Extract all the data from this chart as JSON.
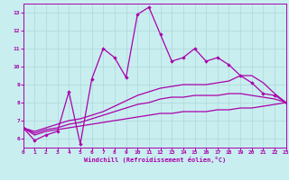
{
  "title": "Windchill (Refroidissement éolien,°C)",
  "bg_color": "#c8eef0",
  "grid_color": "#b0d8d8",
  "line_color": "#aa00aa",
  "xlim": [
    0,
    23
  ],
  "ylim": [
    5.5,
    13.5
  ],
  "xticks": [
    0,
    1,
    2,
    3,
    4,
    5,
    6,
    7,
    8,
    9,
    10,
    11,
    12,
    13,
    14,
    15,
    16,
    17,
    18,
    19,
    20,
    21,
    22,
    23
  ],
  "yticks": [
    6,
    7,
    8,
    9,
    10,
    11,
    12,
    13
  ],
  "series1_x": [
    0,
    1,
    2,
    3,
    4,
    5,
    6,
    7,
    8,
    9,
    10,
    11,
    12,
    13,
    14,
    15,
    16,
    17,
    18,
    19,
    20,
    21,
    22,
    23
  ],
  "series1_y": [
    6.6,
    5.9,
    6.2,
    6.4,
    8.6,
    5.7,
    9.3,
    11.0,
    10.5,
    9.4,
    12.9,
    13.3,
    11.8,
    10.3,
    10.5,
    11.0,
    10.3,
    10.5,
    10.1,
    9.5,
    9.1,
    8.5,
    8.4,
    8.0
  ],
  "series2_x": [
    0,
    1,
    2,
    3,
    4,
    5,
    6,
    7,
    8,
    9,
    10,
    11,
    12,
    13,
    14,
    15,
    16,
    17,
    18,
    19,
    20,
    21,
    22,
    23
  ],
  "series2_y": [
    6.6,
    6.4,
    6.6,
    6.8,
    7.0,
    7.1,
    7.3,
    7.5,
    7.8,
    8.1,
    8.4,
    8.6,
    8.8,
    8.9,
    9.0,
    9.0,
    9.0,
    9.1,
    9.2,
    9.5,
    9.5,
    9.1,
    8.5,
    8.0
  ],
  "series3_x": [
    0,
    1,
    2,
    3,
    4,
    5,
    6,
    7,
    8,
    9,
    10,
    11,
    12,
    13,
    14,
    15,
    16,
    17,
    18,
    19,
    20,
    21,
    22,
    23
  ],
  "series3_y": [
    6.6,
    6.3,
    6.5,
    6.6,
    6.8,
    6.9,
    7.1,
    7.3,
    7.5,
    7.7,
    7.9,
    8.0,
    8.2,
    8.3,
    8.3,
    8.4,
    8.4,
    8.4,
    8.5,
    8.5,
    8.4,
    8.3,
    8.2,
    8.0
  ],
  "series4_x": [
    0,
    1,
    2,
    3,
    4,
    5,
    6,
    7,
    8,
    9,
    10,
    11,
    12,
    13,
    14,
    15,
    16,
    17,
    18,
    19,
    20,
    21,
    22,
    23
  ],
  "series4_y": [
    6.6,
    6.2,
    6.4,
    6.5,
    6.6,
    6.7,
    6.8,
    6.9,
    7.0,
    7.1,
    7.2,
    7.3,
    7.4,
    7.4,
    7.5,
    7.5,
    7.5,
    7.6,
    7.6,
    7.7,
    7.7,
    7.8,
    7.9,
    8.0
  ]
}
